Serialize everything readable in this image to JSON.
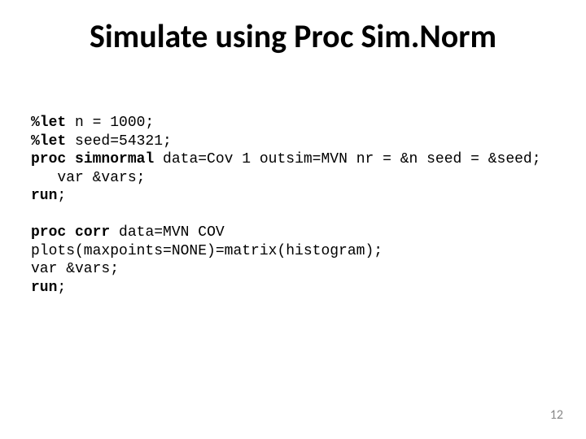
{
  "title": "Simulate using Proc Sim.Norm",
  "title_fontsize": 40,
  "code_fontsize": 18,
  "pagenum_fontsize": 16,
  "code": {
    "l1_a": "%let",
    "l1_b": " n = 1000;",
    "l2_a": "%let",
    "l2_b": " seed=54321;",
    "l3_a": "proc",
    "l3_b": " ",
    "l3_c": "simnormal",
    "l3_d": " data=Cov 1 outsim=MVN nr = &n seed = &seed;",
    "l4": "   var &vars;",
    "l5_a": "run",
    "l5_b": ";",
    "blank1": " ",
    "l6_a": "proc",
    "l6_b": " ",
    "l6_c": "corr",
    "l6_d": " data=MVN COV",
    "l7": "plots(maxpoints=NONE)=matrix(histogram);",
    "l8": "var &vars;",
    "l9_a": "run",
    "l9_b": ";"
  },
  "page_number": "12",
  "colors": {
    "background": "#ffffff",
    "text": "#000000",
    "pagenum": "#888888"
  }
}
